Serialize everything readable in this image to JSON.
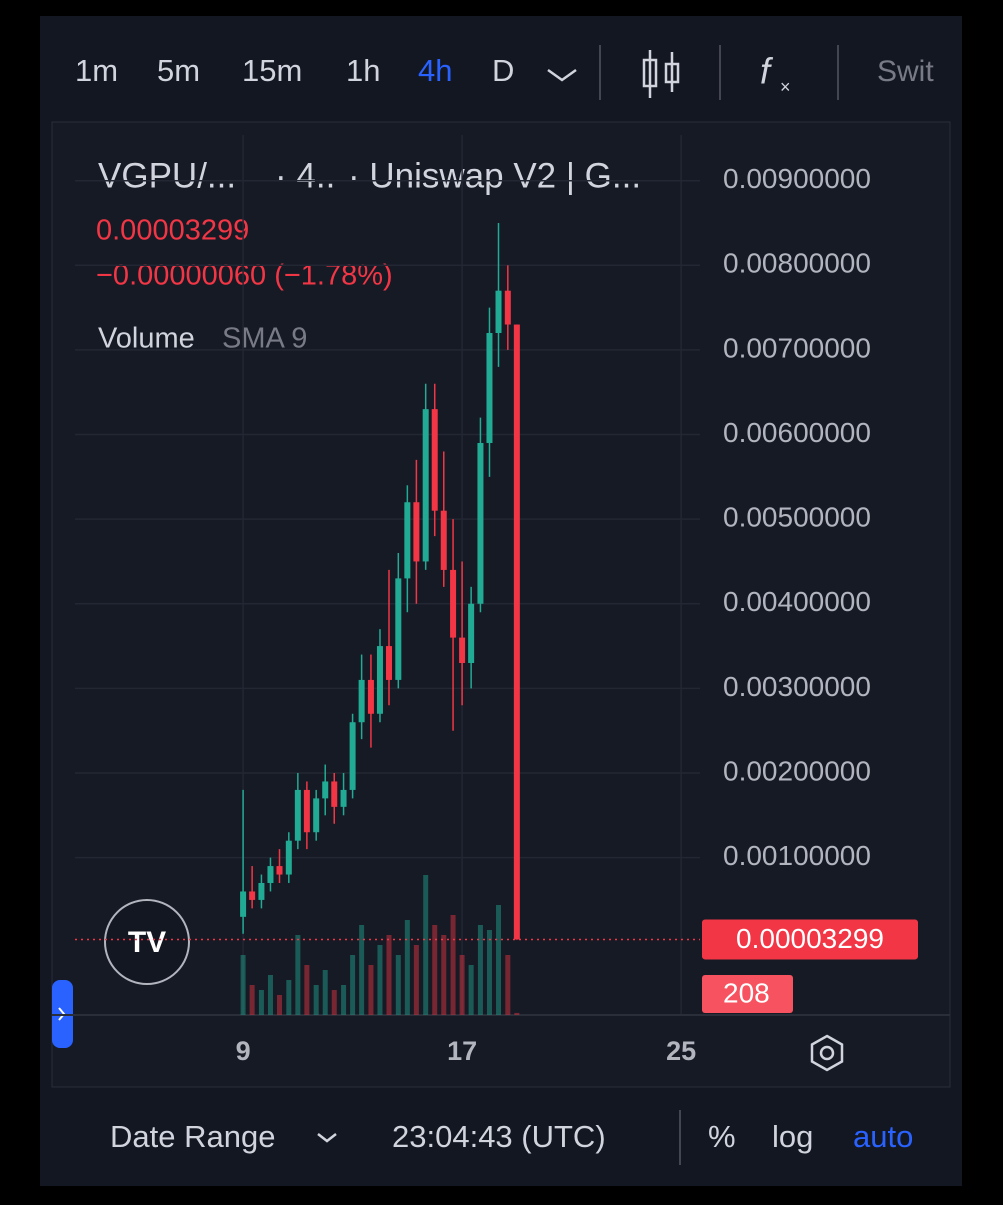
{
  "toolbar": {
    "intervals": [
      "1m",
      "5m",
      "15m",
      "1h",
      "4h",
      "D"
    ],
    "active_interval": "4h",
    "more": "Swit"
  },
  "header": {
    "symbol": "VGPU/...",
    "interval": "· 4..",
    "exchange": "· Uniswap V2 | G...",
    "change": "−0.00000060 (−1.78%)",
    "indicator": "Volume",
    "indicator_params": "SMA 9"
  },
  "chart_data": {
    "type": "candlestick",
    "x": [
      9.0,
      9.33,
      9.67,
      10.0,
      10.33,
      10.67,
      11.0,
      11.33,
      11.67,
      12.0,
      12.33,
      12.67,
      13.0,
      13.33,
      13.67,
      14.0,
      14.33,
      14.67,
      15.0,
      15.33,
      15.67,
      16.0,
      16.33,
      16.67,
      17.0,
      17.33,
      17.67,
      18.0,
      18.33,
      18.67,
      19.0
    ],
    "open": [
      0.0003,
      0.0006,
      0.0005,
      0.0007,
      0.0009,
      0.0008,
      0.0012,
      0.0018,
      0.0013,
      0.0017,
      0.0019,
      0.0016,
      0.0018,
      0.0026,
      0.0031,
      0.0027,
      0.0035,
      0.0031,
      0.0043,
      0.0052,
      0.0045,
      0.0063,
      0.0051,
      0.0044,
      0.0036,
      0.0033,
      0.004,
      0.0059,
      0.0072,
      0.0077,
      0.0073
    ],
    "high": [
      0.0018,
      0.0009,
      0.0008,
      0.001,
      0.0011,
      0.0013,
      0.002,
      0.0019,
      0.0018,
      0.0021,
      0.002,
      0.002,
      0.0027,
      0.0034,
      0.0034,
      0.0037,
      0.0044,
      0.0046,
      0.0054,
      0.0057,
      0.0066,
      0.0066,
      0.0058,
      0.005,
      0.0045,
      0.0042,
      0.0062,
      0.0075,
      0.0085,
      0.008,
      0.0073
    ],
    "low": [
      0.0001,
      0.0004,
      0.0004,
      0.0006,
      0.0007,
      0.0007,
      0.0011,
      0.0011,
      0.0012,
      0.0015,
      0.0014,
      0.0015,
      0.0017,
      0.0024,
      0.0023,
      0.0026,
      0.0028,
      0.003,
      0.0039,
      0.004,
      0.0044,
      0.0048,
      0.0042,
      0.0025,
      0.0028,
      0.003,
      0.0039,
      0.0055,
      0.0068,
      0.007,
      3e-05
    ],
    "close": [
      0.0006,
      0.0005,
      0.0007,
      0.0009,
      0.0008,
      0.0012,
      0.0018,
      0.0013,
      0.0017,
      0.0019,
      0.0016,
      0.0018,
      0.0026,
      0.0031,
      0.0027,
      0.0035,
      0.0031,
      0.0043,
      0.0052,
      0.0045,
      0.0063,
      0.0051,
      0.0044,
      0.0036,
      0.0033,
      0.004,
      0.0059,
      0.0072,
      0.0077,
      0.0073,
      3.299e-05
    ],
    "volumes": [
      6000,
      3000,
      2500,
      4000,
      2000,
      3500,
      8000,
      5000,
      3000,
      4500,
      2500,
      3000,
      6000,
      9000,
      5000,
      7000,
      8000,
      6000,
      9500,
      7000,
      14000,
      9000,
      8000,
      10000,
      6000,
      5000,
      9000,
      8500,
      11000,
      6000,
      208
    ],
    "up_color": "#22ab94",
    "down_color": "#f23645",
    "xlim": [
      2.86,
      25.69
    ],
    "xticks": [
      9,
      17,
      25
    ],
    "ylim": [
      -0.00086,
      0.00954
    ],
    "yticks": [
      {
        "value": 0.001,
        "label": "0.00100000"
      },
      {
        "value": 0.002,
        "label": "0.00200000"
      },
      {
        "value": 0.003,
        "label": "0.00300000"
      },
      {
        "value": 0.004,
        "label": "0.00400000"
      },
      {
        "value": 0.005,
        "label": "0.00500000"
      },
      {
        "value": 0.006,
        "label": "0.00600000"
      },
      {
        "value": 0.007,
        "label": "0.00700000"
      },
      {
        "value": 0.008,
        "label": "0.00800000"
      },
      {
        "value": 0.009,
        "label": "0.00900000"
      }
    ],
    "grid": true
  },
  "footer": {
    "date_range": "Date Range",
    "time": "23:04:43 (UTC)",
    "percent": "%",
    "log": "log",
    "auto": "auto"
  }
}
